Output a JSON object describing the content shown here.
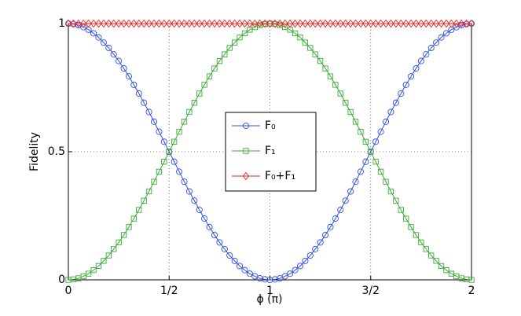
{
  "chart_data": {
    "type": "line",
    "xlabel": "ϕ (π)",
    "ylabel": "Fidelity",
    "x": [
      0,
      0.025,
      0.05,
      0.075,
      0.1,
      0.125,
      0.15,
      0.175,
      0.2,
      0.225,
      0.25,
      0.275,
      0.3,
      0.325,
      0.35,
      0.375,
      0.4,
      0.425,
      0.45,
      0.475,
      0.5,
      0.525,
      0.55,
      0.575,
      0.6,
      0.625,
      0.65,
      0.675,
      0.7,
      0.725,
      0.75,
      0.775,
      0.8,
      0.825,
      0.85,
      0.875,
      0.9,
      0.925,
      0.95,
      0.975,
      1,
      1.025,
      1.05,
      1.075,
      1.1,
      1.125,
      1.15,
      1.175,
      1.2,
      1.225,
      1.25,
      1.275,
      1.3,
      1.325,
      1.35,
      1.375,
      1.4,
      1.425,
      1.45,
      1.475,
      1.5,
      1.525,
      1.55,
      1.575,
      1.6,
      1.625,
      1.65,
      1.675,
      1.7,
      1.725,
      1.75,
      1.775,
      1.8,
      1.825,
      1.85,
      1.875,
      1.9,
      1.925,
      1.95,
      1.975,
      2
    ],
    "series": [
      {
        "name": "F₀",
        "color": "#2f4fe6",
        "marker": "circle",
        "values": [
          1,
          0.998,
          0.994,
          0.986,
          0.976,
          0.962,
          0.946,
          0.926,
          0.905,
          0.88,
          0.854,
          0.825,
          0.794,
          0.761,
          0.727,
          0.691,
          0.655,
          0.617,
          0.578,
          0.539,
          0.5,
          0.461,
          0.422,
          0.383,
          0.345,
          0.309,
          0.273,
          0.239,
          0.206,
          0.175,
          0.146,
          0.12,
          0.095,
          0.074,
          0.054,
          0.038,
          0.024,
          0.014,
          0.006,
          0.002,
          0,
          0.002,
          0.006,
          0.014,
          0.024,
          0.038,
          0.054,
          0.074,
          0.095,
          0.12,
          0.146,
          0.175,
          0.206,
          0.239,
          0.273,
          0.309,
          0.345,
          0.383,
          0.422,
          0.461,
          0.5,
          0.539,
          0.578,
          0.617,
          0.655,
          0.691,
          0.727,
          0.761,
          0.794,
          0.825,
          0.854,
          0.88,
          0.905,
          0.926,
          0.946,
          0.962,
          0.976,
          0.986,
          0.994,
          0.998,
          1
        ]
      },
      {
        "name": "F₁",
        "color": "#3aaa35",
        "marker": "square",
        "values": [
          0,
          0.002,
          0.006,
          0.014,
          0.024,
          0.038,
          0.054,
          0.074,
          0.095,
          0.12,
          0.146,
          0.175,
          0.206,
          0.239,
          0.273,
          0.309,
          0.345,
          0.383,
          0.422,
          0.461,
          0.5,
          0.539,
          0.578,
          0.617,
          0.655,
          0.691,
          0.727,
          0.761,
          0.794,
          0.825,
          0.854,
          0.88,
          0.905,
          0.926,
          0.946,
          0.962,
          0.976,
          0.986,
          0.994,
          0.998,
          1,
          0.998,
          0.994,
          0.986,
          0.976,
          0.962,
          0.946,
          0.926,
          0.905,
          0.88,
          0.854,
          0.825,
          0.794,
          0.761,
          0.727,
          0.691,
          0.655,
          0.617,
          0.578,
          0.539,
          0.5,
          0.461,
          0.422,
          0.383,
          0.345,
          0.309,
          0.273,
          0.239,
          0.206,
          0.175,
          0.146,
          0.12,
          0.095,
          0.074,
          0.054,
          0.038,
          0.024,
          0.014,
          0.006,
          0.002,
          0
        ]
      },
      {
        "name": "F₀+F₁",
        "color": "#e62020",
        "marker": "diamond",
        "values": [
          1,
          1,
          1,
          1,
          1,
          1,
          1,
          1,
          1,
          1,
          1,
          1,
          1,
          1,
          1,
          1,
          1,
          1,
          1,
          1,
          1,
          1,
          1,
          1,
          1,
          1,
          1,
          1,
          1,
          1,
          1,
          1,
          1,
          1,
          1,
          1,
          1,
          1,
          1,
          1,
          1,
          1,
          1,
          1,
          1,
          1,
          1,
          1,
          1,
          1,
          1,
          1,
          1,
          1,
          1,
          1,
          1,
          1,
          1,
          1,
          1,
          1,
          1,
          1,
          1,
          1,
          1,
          1,
          1,
          1,
          1,
          1,
          1,
          1,
          1,
          1,
          1,
          1,
          1,
          1,
          1
        ]
      }
    ],
    "xlim": [
      0,
      2
    ],
    "xticks": [
      0,
      {
        "value": 0.5,
        "label": "1/2"
      },
      1,
      {
        "value": 1.5,
        "label": "3/2"
      },
      2
    ],
    "ylim": [
      0,
      1
    ],
    "yticks": [
      0,
      0.5,
      1
    ],
    "grid": true,
    "legend": "center"
  }
}
